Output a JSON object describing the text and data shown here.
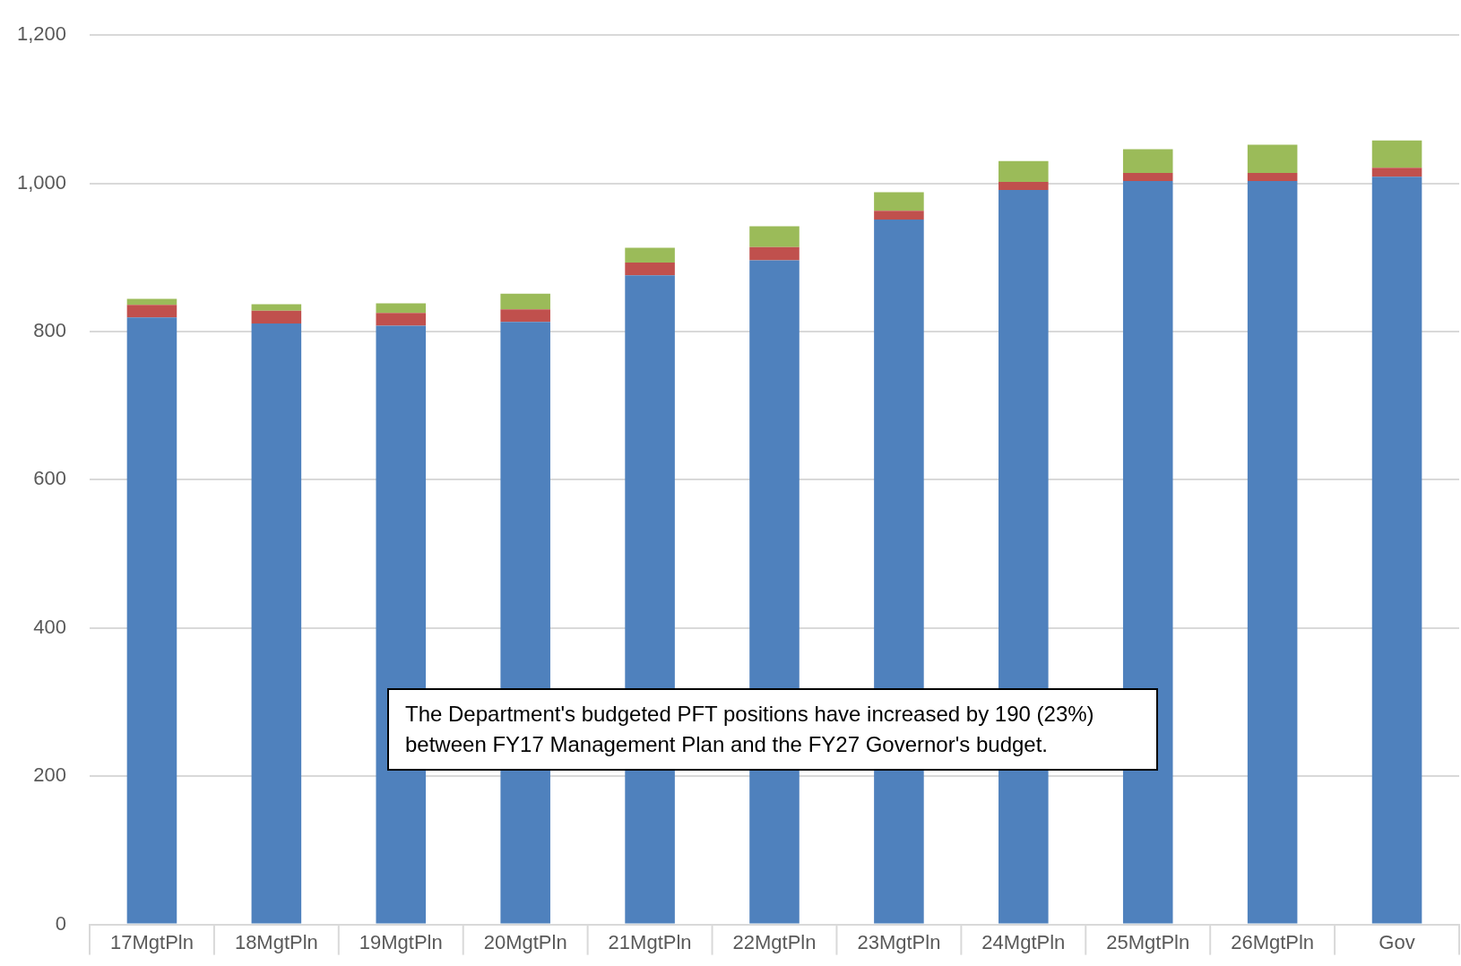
{
  "chart_data": {
    "type": "bar",
    "stacked": true,
    "categories": [
      "17MgtPln",
      "18MgtPln",
      "19MgtPln",
      "20MgtPln",
      "21MgtPln",
      "22MgtPln",
      "23MgtPln",
      "24MgtPln",
      "25MgtPln",
      "26MgtPln",
      "Gov"
    ],
    "series": [
      {
        "color": "#4f81bd",
        "values": [
          819,
          811,
          808,
          813,
          876,
          896,
          951,
          991,
          1003,
          1003,
          1009
        ]
      },
      {
        "color": "#c0504d",
        "values": [
          17,
          17,
          17,
          17,
          17,
          18,
          12,
          11,
          11,
          11,
          12
        ]
      },
      {
        "color": "#9bbb59",
        "values": [
          8,
          9,
          13,
          21,
          20,
          28,
          25,
          28,
          32,
          38,
          37
        ]
      }
    ],
    "ylim": [
      0,
      1200
    ],
    "yticks": [
      0,
      200,
      400,
      600,
      800,
      {
        "value": 1000,
        "label": "1,000"
      },
      {
        "value": 1200,
        "label": "1,200"
      }
    ],
    "grid": "y",
    "legend": false,
    "annotations": [
      "The Department's budgeted PFT positions have increased by 190 (23%) between FY17 Management Plan and the FY27 Governor's budget."
    ]
  }
}
